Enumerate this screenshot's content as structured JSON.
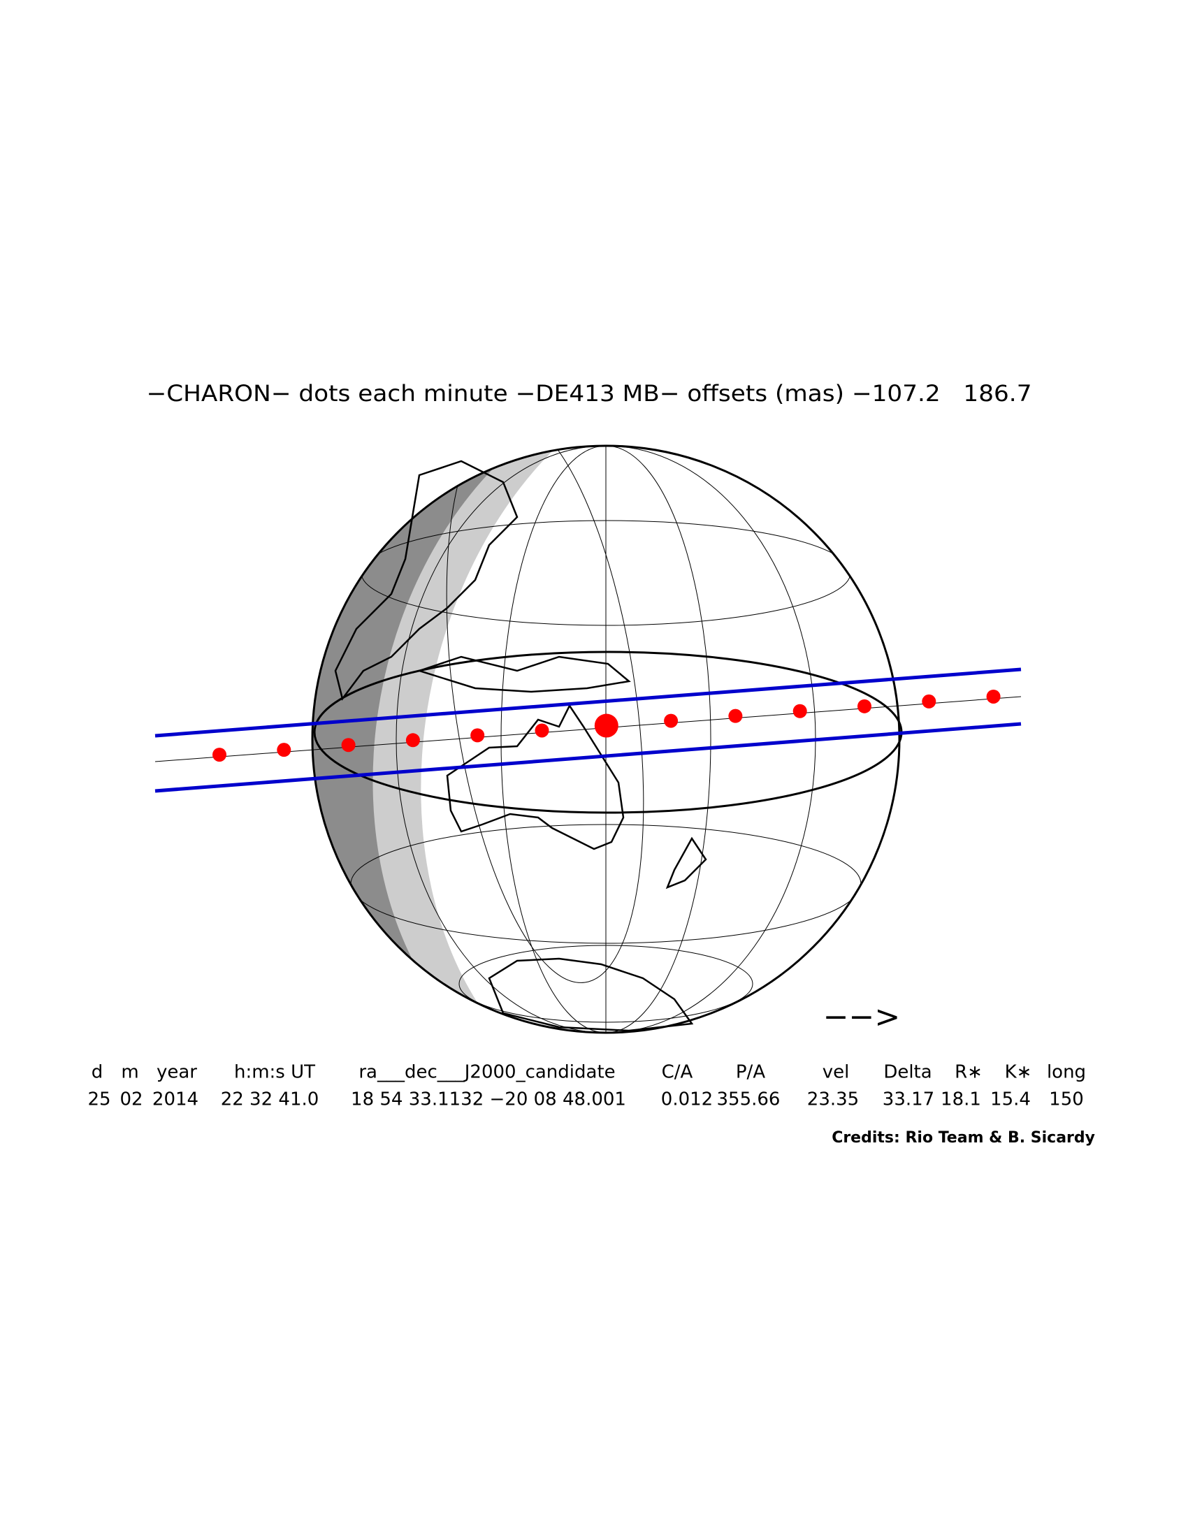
{
  "title": "−CHARON− dots each minute −DE413 MB− offsets (mas) −107.2   186.7",
  "table": {
    "header": [
      "d",
      "m",
      "year",
      "h:m:s UT",
      "ra___dec___J2000_candidate",
      "C/A",
      "P/A",
      "vel",
      "Delta",
      "R∗",
      "K∗",
      "long"
    ],
    "values": [
      "25",
      "02",
      "2014",
      "22 32 41.0",
      "18 54 33.1132 −20 08 48.001",
      "0.012",
      "355.66",
      "23.35",
      "33.17",
      "18.1",
      "15.4",
      "150"
    ]
  },
  "direction_arrow": "−−>",
  "credits": "Credits: Rio Team & B. Sicardy"
}
